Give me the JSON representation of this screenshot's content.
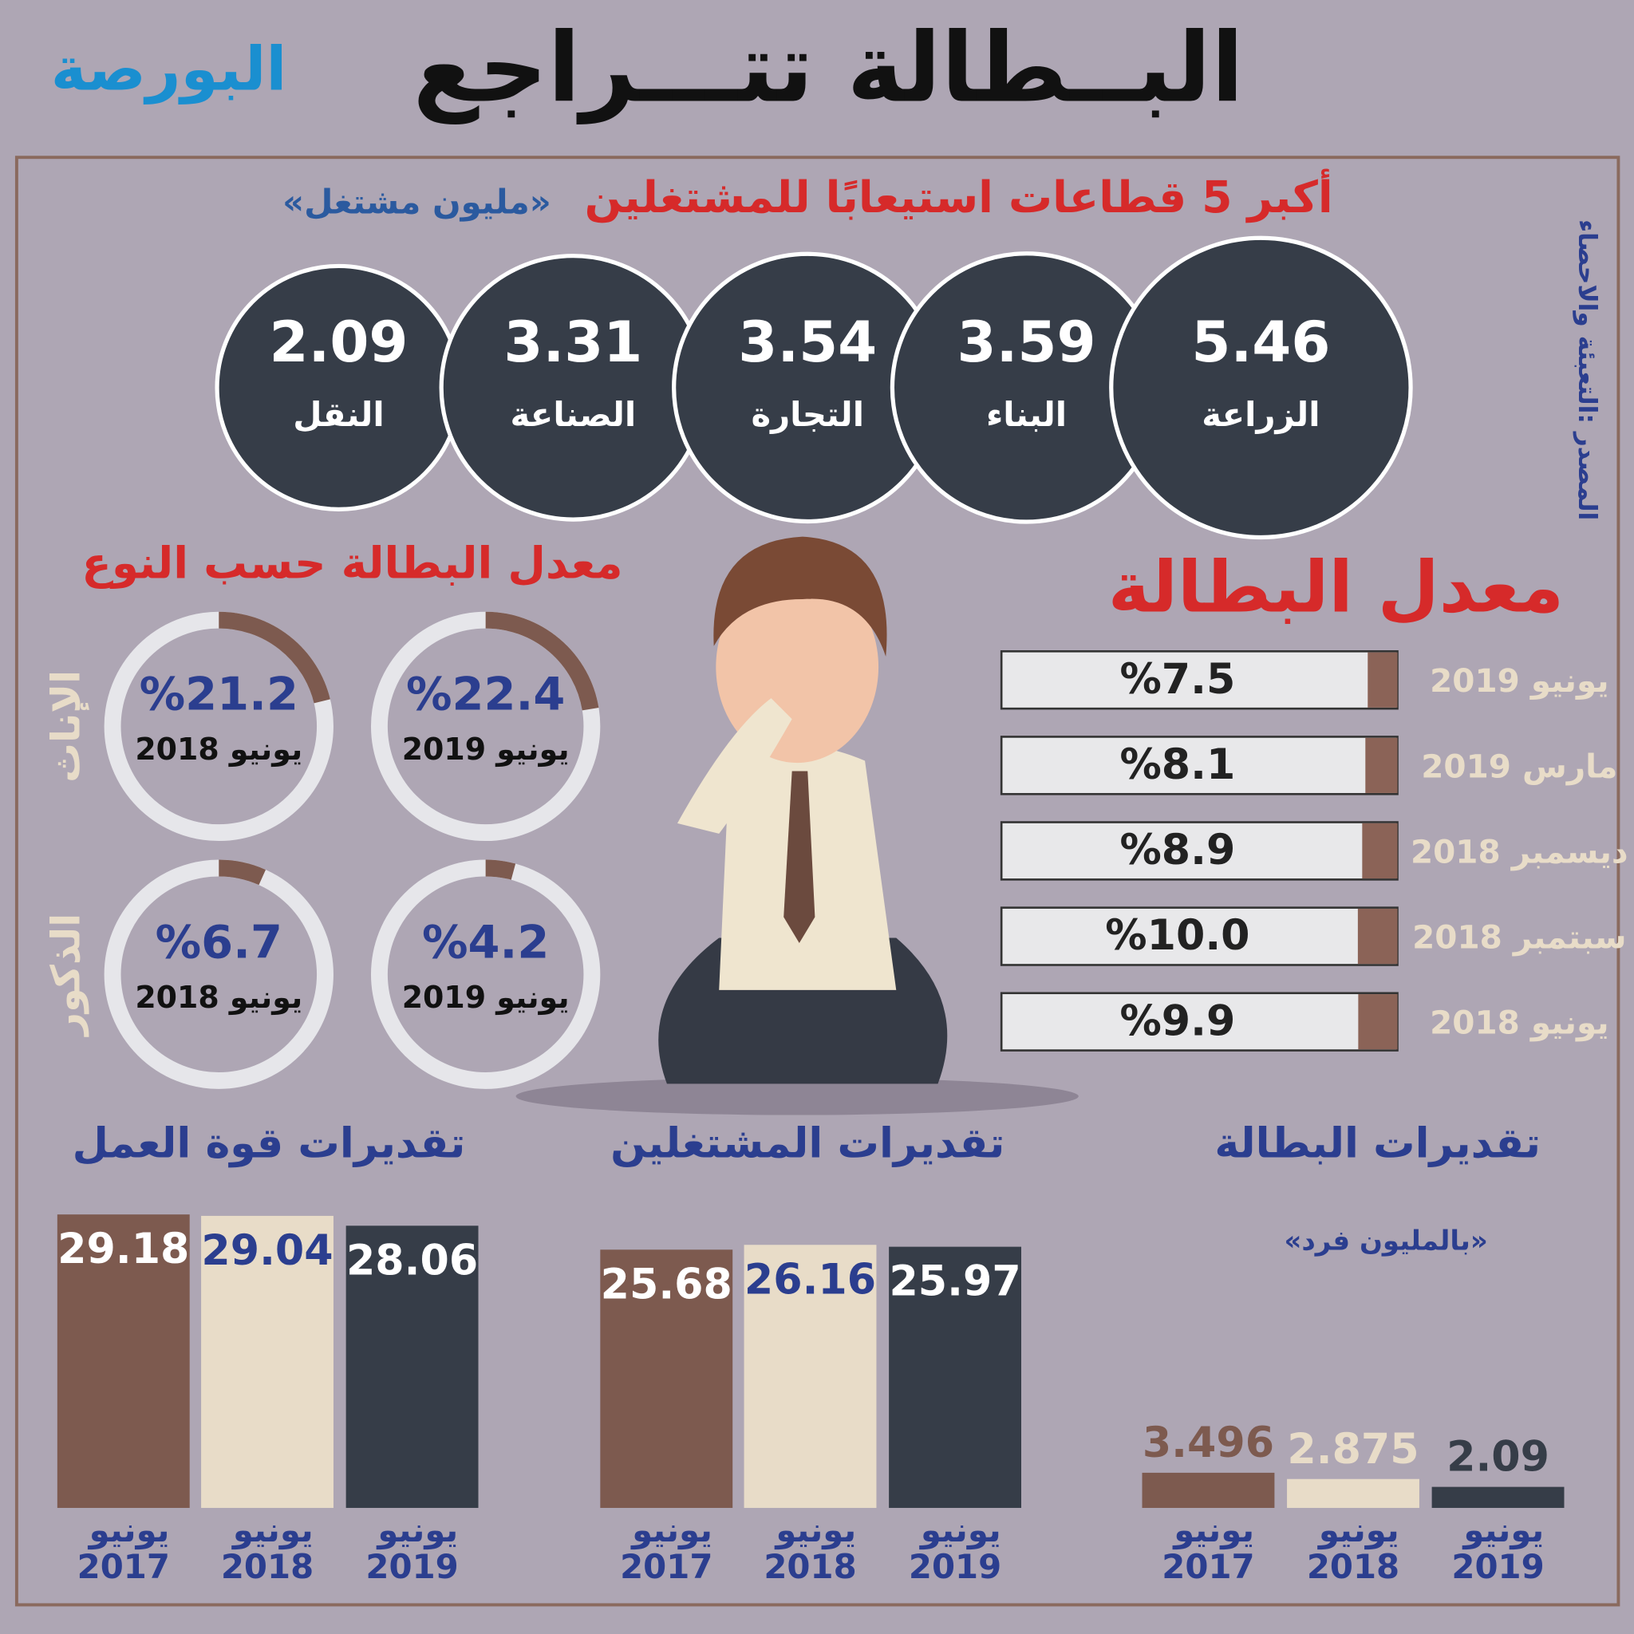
{
  "header": {
    "title": "البــطالة تتـــراجع",
    "logo": "البورصة"
  },
  "source": "المصدر :التعبئة والاحصاء",
  "chart_data": [
    {
      "type": "bubbles",
      "title": "أكبر 5 قطاعات استيعابًا للمشتغلين",
      "subtitle": "«مليون مشتغل»",
      "categories": [
        "الزراعة",
        "البناء",
        "التجارة",
        "الصناعة",
        "النقل"
      ],
      "values": [
        5.46,
        3.59,
        3.54,
        3.31,
        2.09
      ],
      "color": "#363d48"
    },
    {
      "type": "hbar",
      "title": "معدل البطالة",
      "categories": [
        "يونيو 2019",
        "مارس 2019",
        "ديسمبر 2018",
        "سبتمبر 2018",
        "يونيو 2018"
      ],
      "values": [
        7.5,
        8.1,
        8.9,
        10.0,
        9.9
      ],
      "value_labels": [
        "%7.5",
        "%8.1",
        "%8.9",
        "%10.0",
        "%9.9"
      ],
      "xlim": [
        0,
        100
      ],
      "color": "#8b6357"
    },
    {
      "type": "donut",
      "title": "معدل البطالة حسب النوع",
      "categories": [
        "يونيو 2019",
        "يونيو 2018"
      ],
      "series": [
        {
          "name": "الإناث",
          "color": "#7d5a4f",
          "values": [
            22.4,
            21.2
          ],
          "value_labels": [
            "%22.4",
            "%21.2"
          ]
        },
        {
          "name": "الذكور",
          "color": "#7d5a4f",
          "values": [
            4.2,
            6.7
          ],
          "value_labels": [
            "%4.2",
            "%6.7"
          ]
        }
      ]
    },
    {
      "type": "bar",
      "title": "تقديرات قوة العمل",
      "categories": [
        "يونيو 2017",
        "يونيو 2018",
        "يونيو 2019"
      ],
      "values": [
        29.18,
        29.04,
        28.06
      ],
      "colors": [
        "#7d5a4f",
        "#e8dcc8",
        "#363d48"
      ],
      "ylim": [
        0,
        30
      ]
    },
    {
      "type": "bar",
      "title": "تقديرات المشتغلين",
      "categories": [
        "يونيو 2017",
        "يونيو 2018",
        "يونيو 2019"
      ],
      "values": [
        25.68,
        26.16,
        25.97
      ],
      "colors": [
        "#7d5a4f",
        "#e8dcc8",
        "#363d48"
      ],
      "ylim": [
        0,
        30
      ]
    },
    {
      "type": "bar",
      "title": "تقديرات البطالة",
      "subtitle": "«بالمليون فرد»",
      "categories": [
        "يونيو 2017",
        "يونيو 2018",
        "يونيو 2019"
      ],
      "values": [
        3.496,
        2.875,
        2.09
      ],
      "colors": [
        "#7d5a4f",
        "#e8dcc8",
        "#363d48"
      ],
      "ylim": [
        0,
        30
      ]
    }
  ]
}
